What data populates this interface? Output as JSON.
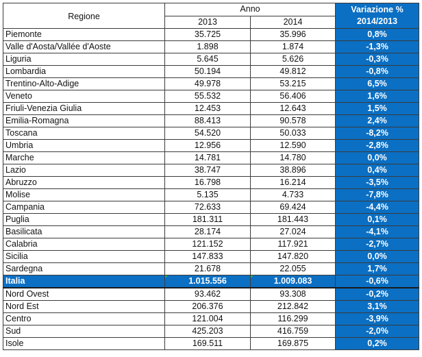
{
  "header": {
    "regione": "Regione",
    "anno": "Anno",
    "year1": "2013",
    "year2": "2014",
    "variazione_line1": "Variazione %",
    "variazione_line2": "2014/2013"
  },
  "regions": [
    {
      "name": "Piemonte",
      "y2013": "35.725",
      "y2014": "35.996",
      "var": "0,8%"
    },
    {
      "name": "Valle d'Aosta/Vallée d'Aoste",
      "y2013": "1.898",
      "y2014": "1.874",
      "var": "-1,3%"
    },
    {
      "name": "Liguria",
      "y2013": "5.645",
      "y2014": "5.626",
      "var": "-0,3%"
    },
    {
      "name": "Lombardia",
      "y2013": "50.194",
      "y2014": "49.812",
      "var": "-0,8%"
    },
    {
      "name": "Trentino-Alto-Adige",
      "y2013": "49.978",
      "y2014": "53.215",
      "var": "6,5%"
    },
    {
      "name": "Veneto",
      "y2013": "55.532",
      "y2014": "56.406",
      "var": "1,6%"
    },
    {
      "name": "Friuli-Venezia Giulia",
      "y2013": "12.453",
      "y2014": "12.643",
      "var": "1,5%"
    },
    {
      "name": "Emilia-Romagna",
      "y2013": "88.413",
      "y2014": "90.578",
      "var": "2,4%"
    },
    {
      "name": "Toscana",
      "y2013": "54.520",
      "y2014": "50.033",
      "var": "-8,2%"
    },
    {
      "name": "Umbria",
      "y2013": "12.956",
      "y2014": "12.590",
      "var": "-2,8%"
    },
    {
      "name": "Marche",
      "y2013": "14.781",
      "y2014": "14.780",
      "var": "0,0%"
    },
    {
      "name": "Lazio",
      "y2013": "38.747",
      "y2014": "38.896",
      "var": "0,4%"
    },
    {
      "name": "Abruzzo",
      "y2013": "16.798",
      "y2014": "16.214",
      "var": "-3,5%"
    },
    {
      "name": "Molise",
      "y2013": "5.135",
      "y2014": "4.733",
      "var": "-7,8%"
    },
    {
      "name": "Campania",
      "y2013": "72.633",
      "y2014": "69.424",
      "var": "-4,4%"
    },
    {
      "name": "Puglia",
      "y2013": "181.311",
      "y2014": "181.443",
      "var": "0,1%"
    },
    {
      "name": "Basilicata",
      "y2013": "28.174",
      "y2014": "27.024",
      "var": "-4,1%"
    },
    {
      "name": "Calabria",
      "y2013": "121.152",
      "y2014": "117.921",
      "var": "-2,7%"
    },
    {
      "name": "Sicilia",
      "y2013": "147.833",
      "y2014": "147.820",
      "var": "0,0%"
    },
    {
      "name": "Sardegna",
      "y2013": "21.678",
      "y2014": "22.055",
      "var": "1,7%"
    }
  ],
  "italia": {
    "name": "Italia",
    "y2013": "1.015.556",
    "y2014": "1.009.083",
    "var": "-0,6%"
  },
  "areas": [
    {
      "name": "Nord Ovest",
      "y2013": "93.462",
      "y2014": "93.308",
      "var": "-0,2%"
    },
    {
      "name": "Nord Est",
      "y2013": "206.376",
      "y2014": "212.842",
      "var": "3,1%"
    },
    {
      "name": "Centro",
      "y2013": "121.004",
      "y2014": "116.299",
      "var": "-3,9%"
    },
    {
      "name": "Sud",
      "y2013": "425.203",
      "y2014": "416.759",
      "var": "-2,0%"
    },
    {
      "name": "Isole",
      "y2013": "169.511",
      "y2014": "169.875",
      "var": "0,2%"
    }
  ],
  "colors": {
    "accent": "#0b6fc3",
    "marker": "#2bb24c"
  }
}
